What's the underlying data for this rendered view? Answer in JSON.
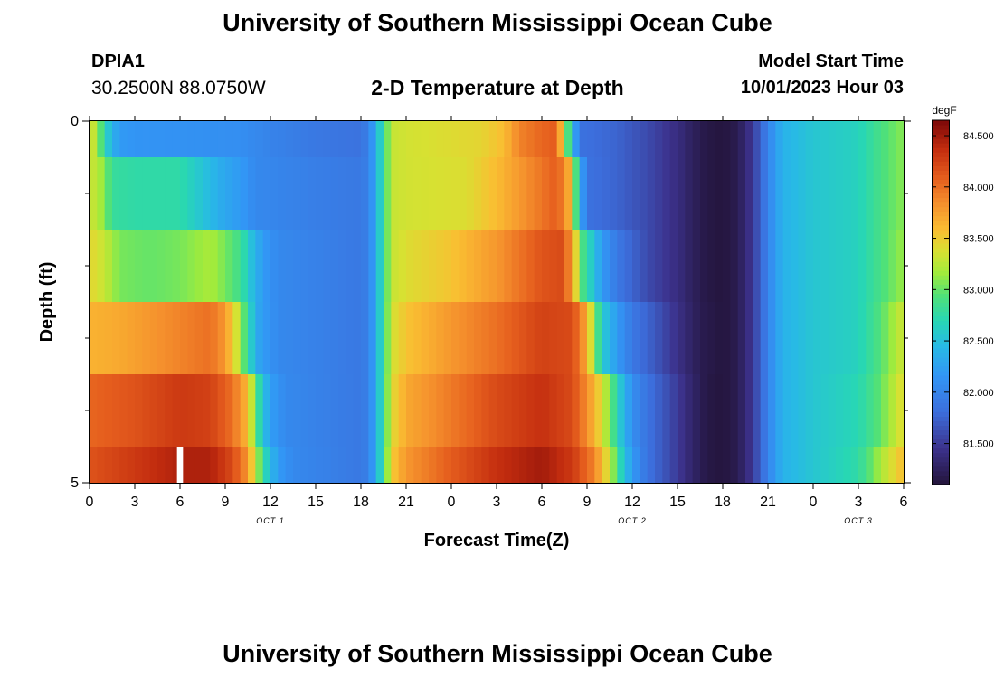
{
  "header": {
    "title": "University of Southern Mississippi Ocean Cube",
    "station": "DPIA1",
    "coords": "30.2500N  88.0750W",
    "subtitle": "2-D Temperature at Depth",
    "start_label": "Model Start Time",
    "start_time": "10/01/2023 Hour 03",
    "footer_title": "University of Southern Mississippi Ocean Cube"
  },
  "chart_data": {
    "type": "heatmap",
    "title": "2-D Temperature at Depth",
    "xlabel": "Forecast Time(Z)",
    "ylabel": "Depth (ft)",
    "x_ticks": [
      "0",
      "3",
      "6",
      "9",
      "12",
      "15",
      "18",
      "21",
      "0",
      "3",
      "6",
      "9",
      "12",
      "15",
      "18",
      "21",
      "0",
      "3",
      "6"
    ],
    "x_range_hours": [
      0,
      54
    ],
    "y_ticks": [
      "0",
      "5"
    ],
    "y_range": [
      0,
      5
    ],
    "day_labels": [
      {
        "text": "OCT 1",
        "hour": 12
      },
      {
        "text": "OCT 2",
        "hour": 36
      },
      {
        "text": "OCT 3",
        "hour": 51
      }
    ],
    "colorbar": {
      "unit": "degF",
      "ticks": [
        "84.500",
        "84.000",
        "83.500",
        "83.000",
        "82.500",
        "82.000",
        "81.500"
      ],
      "tick_values": [
        84.5,
        84.0,
        83.5,
        83.0,
        82.5,
        82.0,
        81.5
      ],
      "range": [
        81.1,
        84.65
      ]
    },
    "depth_rows": [
      {
        "depth": "0-0.5",
        "temps_by_hour": [
          {
            "h": 0,
            "v": 83.4
          },
          {
            "h": 0.5,
            "v": 83.2
          },
          {
            "h": 1,
            "v": 82.7
          },
          {
            "h": 1.5,
            "v": 82.4
          },
          {
            "h": 2,
            "v": 82.2
          },
          {
            "h": 3,
            "v": 82.15
          },
          {
            "h": 10,
            "v": 82.1
          },
          {
            "h": 12,
            "v": 82.0
          },
          {
            "h": 15,
            "v": 81.9
          },
          {
            "h": 18,
            "v": 81.85
          },
          {
            "h": 18.6,
            "v": 82.0
          },
          {
            "h": 19,
            "v": 82.4
          },
          {
            "h": 19.5,
            "v": 82.8
          },
          {
            "h": 20,
            "v": 83.3
          },
          {
            "h": 21,
            "v": 83.35
          },
          {
            "h": 26,
            "v": 83.45
          },
          {
            "h": 27.5,
            "v": 83.6
          },
          {
            "h": 28.5,
            "v": 83.9
          },
          {
            "h": 30,
            "v": 84.05
          },
          {
            "h": 31,
            "v": 84.1
          },
          {
            "h": 31.5,
            "v": 83.3
          },
          {
            "h": 32,
            "v": 82.5
          },
          {
            "h": 32.5,
            "v": 81.85
          },
          {
            "h": 35,
            "v": 81.75
          },
          {
            "h": 37,
            "v": 81.6
          },
          {
            "h": 39,
            "v": 81.4
          },
          {
            "h": 40,
            "v": 81.25
          },
          {
            "h": 41,
            "v": 81.15
          },
          {
            "h": 42,
            "v": 81.12
          },
          {
            "h": 43,
            "v": 81.2
          },
          {
            "h": 44,
            "v": 81.5
          },
          {
            "h": 45,
            "v": 82.0
          },
          {
            "h": 46,
            "v": 82.4
          },
          {
            "h": 48,
            "v": 82.55
          },
          {
            "h": 51,
            "v": 82.65
          },
          {
            "h": 52.5,
            "v": 82.9
          },
          {
            "h": 54,
            "v": 83.1
          }
        ]
      },
      {
        "depth": "0.5-1.5",
        "temps_by_hour": [
          {
            "h": 0,
            "v": 83.35
          },
          {
            "h": 1,
            "v": 83.1
          },
          {
            "h": 1.5,
            "v": 82.8
          },
          {
            "h": 3,
            "v": 82.75
          },
          {
            "h": 6,
            "v": 82.75
          },
          {
            "h": 7,
            "v": 82.6
          },
          {
            "h": 8,
            "v": 82.45
          },
          {
            "h": 9,
            "v": 82.3
          },
          {
            "h": 10,
            "v": 82.2
          },
          {
            "h": 11,
            "v": 82.05
          },
          {
            "h": 13,
            "v": 82.0
          },
          {
            "h": 18,
            "v": 81.9
          },
          {
            "h": 18.6,
            "v": 82.0
          },
          {
            "h": 19,
            "v": 82.4
          },
          {
            "h": 19.5,
            "v": 82.8
          },
          {
            "h": 20,
            "v": 83.3
          },
          {
            "h": 21,
            "v": 83.35
          },
          {
            "h": 25,
            "v": 83.4
          },
          {
            "h": 27,
            "v": 83.6
          },
          {
            "h": 29,
            "v": 83.85
          },
          {
            "h": 31,
            "v": 84.1
          },
          {
            "h": 31.7,
            "v": 83.8
          },
          {
            "h": 32.2,
            "v": 83.0
          },
          {
            "h": 32.6,
            "v": 82.3
          },
          {
            "h": 33,
            "v": 81.85
          },
          {
            "h": 35,
            "v": 81.75
          },
          {
            "h": 37,
            "v": 81.6
          },
          {
            "h": 39,
            "v": 81.4
          },
          {
            "h": 40,
            "v": 81.25
          },
          {
            "h": 41,
            "v": 81.15
          },
          {
            "h": 42,
            "v": 81.12
          },
          {
            "h": 43,
            "v": 81.2
          },
          {
            "h": 44,
            "v": 81.5
          },
          {
            "h": 45,
            "v": 82.0
          },
          {
            "h": 46,
            "v": 82.4
          },
          {
            "h": 48,
            "v": 82.55
          },
          {
            "h": 51,
            "v": 82.65
          },
          {
            "h": 52.5,
            "v": 82.9
          },
          {
            "h": 54,
            "v": 83.1
          }
        ]
      },
      {
        "depth": "1.5-2.5",
        "temps_by_hour": [
          {
            "h": 0,
            "v": 83.45
          },
          {
            "h": 1,
            "v": 83.3
          },
          {
            "h": 2,
            "v": 83.05
          },
          {
            "h": 4,
            "v": 83.0
          },
          {
            "h": 6,
            "v": 83.05
          },
          {
            "h": 8,
            "v": 83.2
          },
          {
            "h": 9,
            "v": 83.05
          },
          {
            "h": 10,
            "v": 82.85
          },
          {
            "h": 10.5,
            "v": 82.6
          },
          {
            "h": 11,
            "v": 82.4
          },
          {
            "h": 11.5,
            "v": 82.2
          },
          {
            "h": 12.5,
            "v": 82.05
          },
          {
            "h": 18,
            "v": 81.9
          },
          {
            "h": 18.6,
            "v": 82.0
          },
          {
            "h": 19,
            "v": 82.4
          },
          {
            "h": 19.5,
            "v": 82.8
          },
          {
            "h": 20,
            "v": 83.3
          },
          {
            "h": 21,
            "v": 83.4
          },
          {
            "h": 24,
            "v": 83.55
          },
          {
            "h": 27,
            "v": 83.8
          },
          {
            "h": 30,
            "v": 84.15
          },
          {
            "h": 31.5,
            "v": 84.2
          },
          {
            "h": 32.2,
            "v": 83.5
          },
          {
            "h": 32.7,
            "v": 82.9
          },
          {
            "h": 33.3,
            "v": 82.6
          },
          {
            "h": 34,
            "v": 82.2
          },
          {
            "h": 35,
            "v": 81.9
          },
          {
            "h": 37,
            "v": 81.6
          },
          {
            "h": 39,
            "v": 81.4
          },
          {
            "h": 40,
            "v": 81.25
          },
          {
            "h": 41,
            "v": 81.15
          },
          {
            "h": 42,
            "v": 81.12
          },
          {
            "h": 43,
            "v": 81.2
          },
          {
            "h": 44,
            "v": 81.5
          },
          {
            "h": 45,
            "v": 82.0
          },
          {
            "h": 46,
            "v": 82.4
          },
          {
            "h": 48,
            "v": 82.55
          },
          {
            "h": 51,
            "v": 82.65
          },
          {
            "h": 52.5,
            "v": 82.9
          },
          {
            "h": 54,
            "v": 83.15
          }
        ]
      },
      {
        "depth": "2.5-3.5",
        "temps_by_hour": [
          {
            "h": 0,
            "v": 83.65
          },
          {
            "h": 2,
            "v": 83.7
          },
          {
            "h": 5,
            "v": 83.85
          },
          {
            "h": 8,
            "v": 84.0
          },
          {
            "h": 9,
            "v": 83.8
          },
          {
            "h": 9.7,
            "v": 83.4
          },
          {
            "h": 10.2,
            "v": 83.0
          },
          {
            "h": 10.7,
            "v": 82.6
          },
          {
            "h": 11.3,
            "v": 82.25
          },
          {
            "h": 12.5,
            "v": 82.05
          },
          {
            "h": 18,
            "v": 81.9
          },
          {
            "h": 18.6,
            "v": 82.0
          },
          {
            "h": 19,
            "v": 82.4
          },
          {
            "h": 19.5,
            "v": 82.8
          },
          {
            "h": 20,
            "v": 83.35
          },
          {
            "h": 21,
            "v": 83.55
          },
          {
            "h": 24,
            "v": 83.8
          },
          {
            "h": 27,
            "v": 84.0
          },
          {
            "h": 30,
            "v": 84.25
          },
          {
            "h": 32,
            "v": 84.2
          },
          {
            "h": 33,
            "v": 83.7
          },
          {
            "h": 33.5,
            "v": 83.1
          },
          {
            "h": 34,
            "v": 82.6
          },
          {
            "h": 35,
            "v": 82.2
          },
          {
            "h": 36,
            "v": 81.9
          },
          {
            "h": 38,
            "v": 81.6
          },
          {
            "h": 39.5,
            "v": 81.35
          },
          {
            "h": 40.5,
            "v": 81.2
          },
          {
            "h": 42,
            "v": 81.12
          },
          {
            "h": 43,
            "v": 81.2
          },
          {
            "h": 44,
            "v": 81.5
          },
          {
            "h": 45,
            "v": 82.0
          },
          {
            "h": 46,
            "v": 82.4
          },
          {
            "h": 48,
            "v": 82.55
          },
          {
            "h": 51,
            "v": 82.65
          },
          {
            "h": 52.5,
            "v": 82.95
          },
          {
            "h": 54,
            "v": 83.35
          }
        ]
      },
      {
        "depth": "3.5-4.5",
        "temps_by_hour": [
          {
            "h": 0,
            "v": 84.05
          },
          {
            "h": 3,
            "v": 84.15
          },
          {
            "h": 6,
            "v": 84.3
          },
          {
            "h": 8,
            "v": 84.25
          },
          {
            "h": 9.5,
            "v": 84.0
          },
          {
            "h": 10.5,
            "v": 83.6
          },
          {
            "h": 11,
            "v": 83.0
          },
          {
            "h": 11.5,
            "v": 82.5
          },
          {
            "h": 12.2,
            "v": 82.2
          },
          {
            "h": 13,
            "v": 82.05
          },
          {
            "h": 18,
            "v": 81.9
          },
          {
            "h": 18.6,
            "v": 82.0
          },
          {
            "h": 19,
            "v": 82.4
          },
          {
            "h": 19.5,
            "v": 82.8
          },
          {
            "h": 20,
            "v": 83.4
          },
          {
            "h": 21,
            "v": 83.7
          },
          {
            "h": 24,
            "v": 83.95
          },
          {
            "h": 27,
            "v": 84.2
          },
          {
            "h": 30,
            "v": 84.35
          },
          {
            "h": 32,
            "v": 84.2
          },
          {
            "h": 33,
            "v": 83.85
          },
          {
            "h": 34,
            "v": 83.4
          },
          {
            "h": 34.7,
            "v": 82.9
          },
          {
            "h": 35.3,
            "v": 82.5
          },
          {
            "h": 36,
            "v": 82.1
          },
          {
            "h": 37,
            "v": 81.85
          },
          {
            "h": 38.5,
            "v": 81.6
          },
          {
            "h": 40,
            "v": 81.3
          },
          {
            "h": 41,
            "v": 81.15
          },
          {
            "h": 42,
            "v": 81.12
          },
          {
            "h": 43,
            "v": 81.2
          },
          {
            "h": 44,
            "v": 81.5
          },
          {
            "h": 45,
            "v": 82.0
          },
          {
            "h": 46,
            "v": 82.4
          },
          {
            "h": 48,
            "v": 82.55
          },
          {
            "h": 51,
            "v": 82.7
          },
          {
            "h": 52.5,
            "v": 83.0
          },
          {
            "h": 54,
            "v": 83.45
          }
        ]
      },
      {
        "depth": "4.5-5",
        "temps_by_hour": [
          {
            "h": 0,
            "v": 84.15
          },
          {
            "h": 3,
            "v": 84.3
          },
          {
            "h": 6,
            "v": 84.45
          },
          {
            "h": 8,
            "v": 84.45
          },
          {
            "h": 9.5,
            "v": 84.2
          },
          {
            "h": 10.5,
            "v": 83.8
          },
          {
            "h": 11.2,
            "v": 83.1
          },
          {
            "h": 11.8,
            "v": 82.6
          },
          {
            "h": 12.5,
            "v": 82.2
          },
          {
            "h": 13.5,
            "v": 82.05
          },
          {
            "h": 18,
            "v": 81.9
          },
          {
            "h": 18.6,
            "v": 82.0
          },
          {
            "h": 19,
            "v": 82.4
          },
          {
            "h": 19.5,
            "v": 82.8
          },
          {
            "h": 20,
            "v": 83.5
          },
          {
            "h": 21,
            "v": 83.8
          },
          {
            "h": 24,
            "v": 84.1
          },
          {
            "h": 27,
            "v": 84.35
          },
          {
            "h": 30,
            "v": 84.5
          },
          {
            "h": 32,
            "v": 84.3
          },
          {
            "h": 33.5,
            "v": 83.9
          },
          {
            "h": 34.5,
            "v": 83.3
          },
          {
            "h": 35.2,
            "v": 82.7
          },
          {
            "h": 36,
            "v": 82.2
          },
          {
            "h": 37,
            "v": 81.85
          },
          {
            "h": 38.5,
            "v": 81.6
          },
          {
            "h": 40,
            "v": 81.3
          },
          {
            "h": 41,
            "v": 81.15
          },
          {
            "h": 42,
            "v": 81.12
          },
          {
            "h": 43,
            "v": 81.2
          },
          {
            "h": 44,
            "v": 81.5
          },
          {
            "h": 45,
            "v": 82.0
          },
          {
            "h": 46,
            "v": 82.4
          },
          {
            "h": 48,
            "v": 82.55
          },
          {
            "h": 51,
            "v": 82.75
          },
          {
            "h": 52.5,
            "v": 83.2
          },
          {
            "h": 54,
            "v": 83.6
          }
        ]
      }
    ],
    "missing_cells": [
      {
        "depth": "4.5-5",
        "hour_start": 5.8,
        "hour_end": 6.2
      }
    ]
  }
}
